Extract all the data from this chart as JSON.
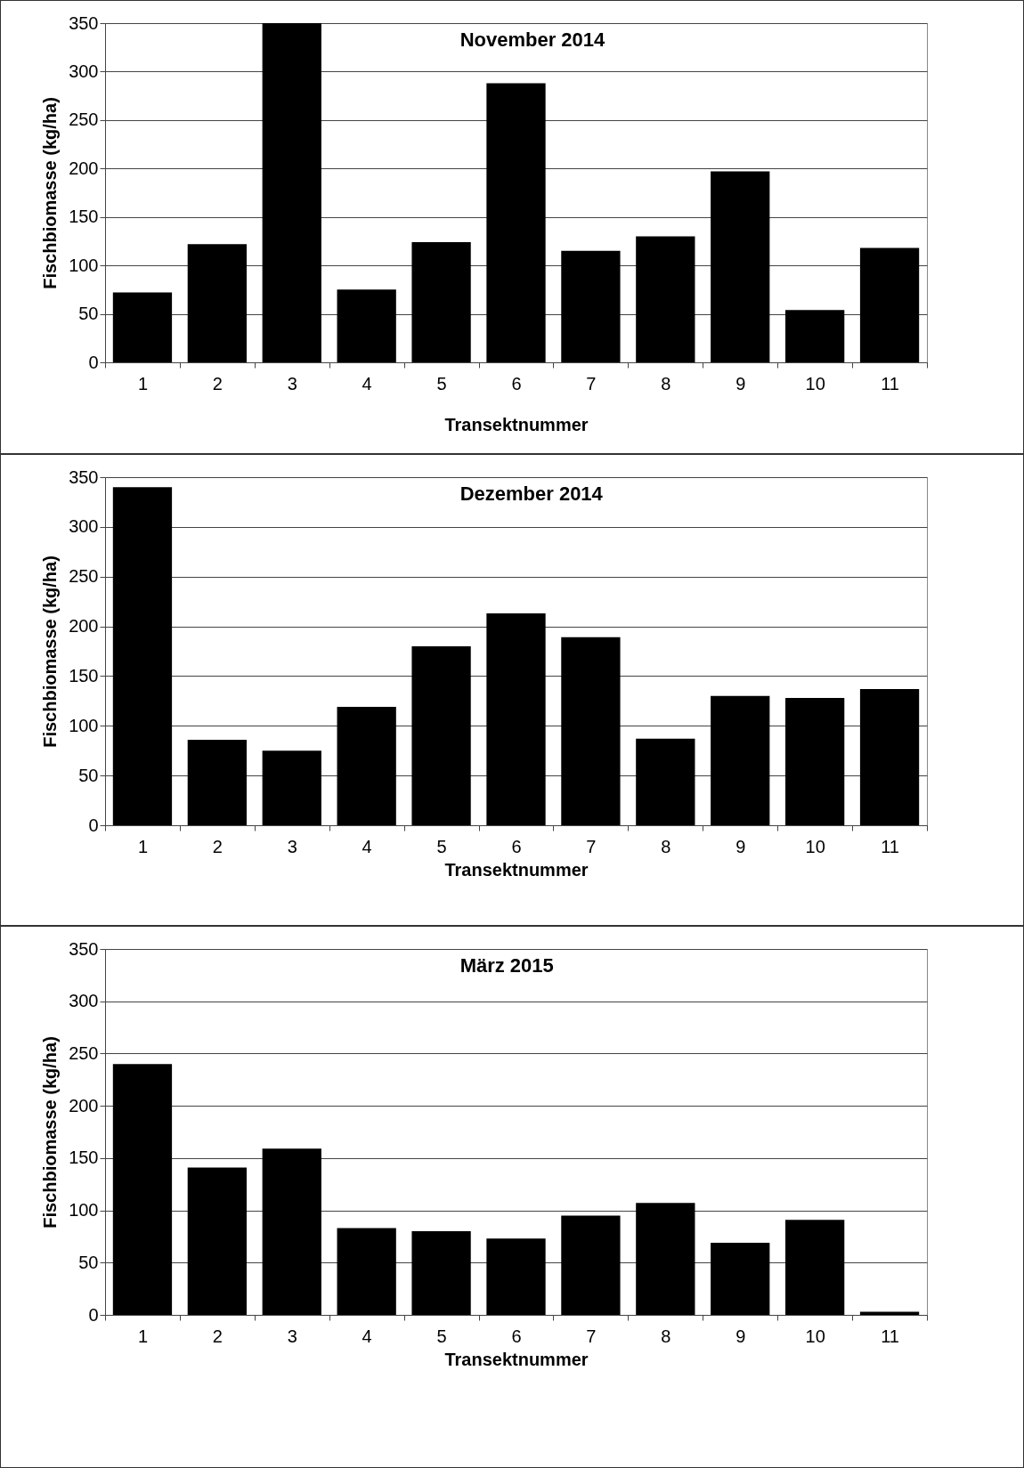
{
  "chart_data": [
    {
      "type": "bar",
      "title": "November 2014",
      "xlabel": "Transektnummer",
      "ylabel": "Fischbiomasse (kg/ha)",
      "categories": [
        "1",
        "2",
        "3",
        "4",
        "5",
        "6",
        "7",
        "8",
        "9",
        "10",
        "11"
      ],
      "values": [
        72,
        122,
        350,
        75,
        124,
        288,
        115,
        130,
        197,
        54,
        118
      ],
      "color": "#000000",
      "ylim": [
        0,
        350
      ],
      "yticks": [
        0,
        50,
        100,
        150,
        200,
        250,
        300,
        350
      ],
      "grid": "y"
    },
    {
      "type": "bar",
      "title": "Dezember 2014",
      "xlabel": "Transektnummer",
      "ylabel": "Fischbiomasse (kg/ha)",
      "categories": [
        "1",
        "2",
        "3",
        "4",
        "5",
        "6",
        "7",
        "8",
        "9",
        "10",
        "11"
      ],
      "values": [
        340,
        86,
        75,
        119,
        180,
        213,
        189,
        87,
        130,
        128,
        137
      ],
      "color": "#000000",
      "ylim": [
        0,
        350
      ],
      "yticks": [
        0,
        50,
        100,
        150,
        200,
        250,
        300,
        350
      ],
      "grid": "y"
    },
    {
      "type": "bar",
      "title": "März 2015",
      "xlabel": "Transektnummer",
      "ylabel": "Fischbiomasse (kg/ha)",
      "categories": [
        "1",
        "2",
        "3",
        "4",
        "5",
        "6",
        "7",
        "8",
        "9",
        "10",
        "11"
      ],
      "values": [
        240,
        141,
        159,
        83,
        80,
        73,
        95,
        107,
        69,
        91,
        3
      ],
      "color": "#000000",
      "ylim": [
        0,
        350
      ],
      "yticks": [
        0,
        50,
        100,
        150,
        200,
        250,
        300,
        350
      ],
      "grid": "y"
    }
  ]
}
